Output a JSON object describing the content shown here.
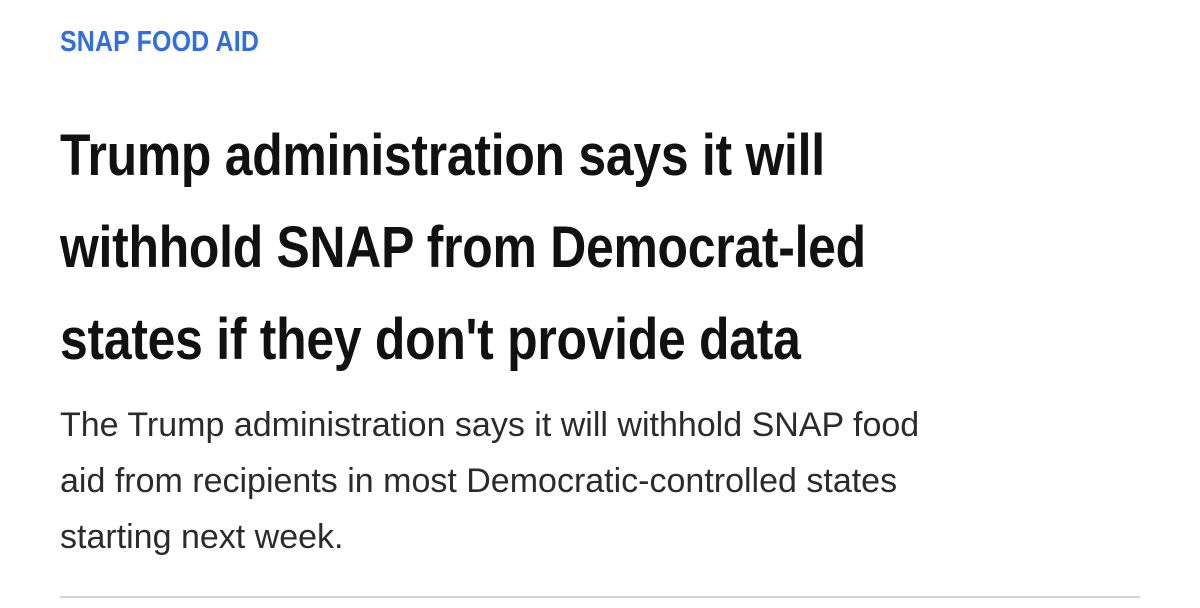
{
  "article": {
    "kicker": "SNAP FOOD AID",
    "headline_lines": [
      "Trump administration says it will",
      "withhold SNAP from Democrat-led",
      "states if they don't provide data"
    ],
    "dek_lines": [
      "The Trump administration says it will withhold SNAP food",
      "aid from recipients in most Democratic-controlled states",
      "starting next week."
    ]
  },
  "colors": {
    "kicker": "#2e6ee6",
    "headline": "#111111",
    "dek": "#2b2b2b",
    "divider": "#d4d4d4"
  }
}
